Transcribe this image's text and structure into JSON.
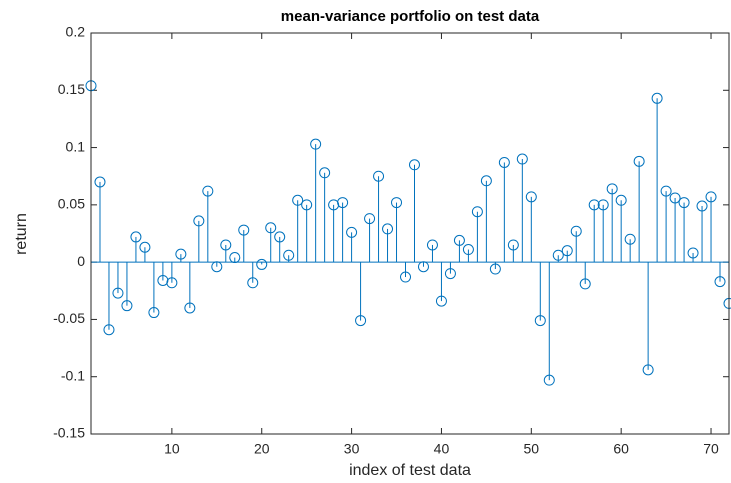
{
  "chart_data": {
    "type": "stem",
    "title": "mean-variance portfolio on test data",
    "x_label": "index of test data",
    "y_label": "return",
    "x": [
      1,
      2,
      3,
      4,
      5,
      6,
      7,
      8,
      9,
      10,
      11,
      12,
      13,
      14,
      15,
      16,
      17,
      18,
      19,
      20,
      21,
      22,
      23,
      24,
      25,
      26,
      27,
      28,
      29,
      30,
      31,
      32,
      33,
      34,
      35,
      36,
      37,
      38,
      39,
      40,
      41,
      42,
      43,
      44,
      45,
      46,
      47,
      48,
      49,
      50,
      51,
      52,
      53,
      54,
      55,
      56,
      57,
      58,
      59,
      60,
      61,
      62,
      63,
      64,
      65,
      66,
      67,
      68,
      69,
      70,
      71,
      72
    ],
    "values": [
      0.154,
      0.07,
      -0.059,
      -0.027,
      -0.038,
      0.022,
      0.013,
      -0.044,
      -0.016,
      -0.018,
      0.007,
      -0.04,
      0.036,
      0.062,
      -0.004,
      0.015,
      0.004,
      0.028,
      -0.018,
      -0.002,
      0.03,
      0.022,
      0.006,
      0.054,
      0.05,
      0.103,
      0.078,
      0.05,
      0.052,
      0.026,
      -0.051,
      0.038,
      0.075,
      0.029,
      0.052,
      -0.013,
      0.085,
      -0.004,
      0.015,
      -0.034,
      -0.01,
      0.019,
      0.011,
      0.044,
      0.071,
      -0.006,
      0.087,
      0.015,
      0.09,
      0.057,
      -0.051,
      -0.103,
      0.006,
      0.01,
      0.027,
      -0.019,
      0.05,
      0.05,
      0.064,
      0.054,
      0.02,
      0.088,
      -0.094,
      0.143,
      0.062,
      0.056,
      0.052,
      0.008,
      0.049,
      0.057,
      -0.017,
      -0.036
    ],
    "color": "#0072bd",
    "xlim": [
      1,
      72
    ],
    "xticks": [
      10,
      20,
      30,
      40,
      50,
      60,
      70
    ],
    "ylim": [
      -0.15,
      0.2
    ],
    "yticks": [
      -0.15,
      -0.1,
      -0.05,
      0,
      0.05,
      0.1,
      0.15,
      0.2
    ]
  }
}
